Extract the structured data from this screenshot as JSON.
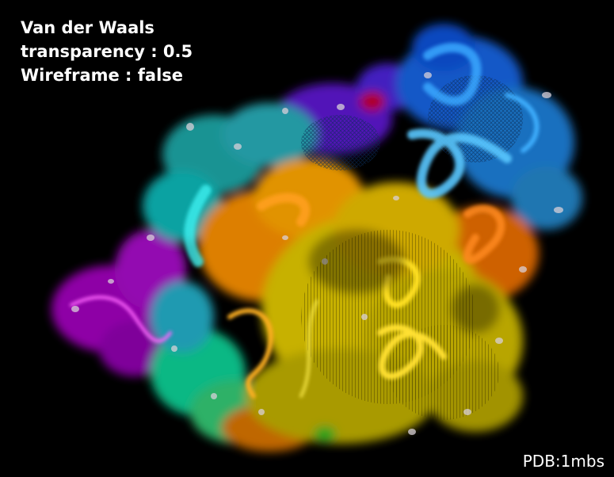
{
  "settings": {
    "representation": "Van der Waals",
    "transparency": "transparency : 0.5",
    "wireframe": "Wireframe : false"
  },
  "structure": {
    "pdb_id": "PDB:1mbs"
  },
  "render": {
    "background": "#000000",
    "palette": [
      "#9400d3",
      "#5a2ad8",
      "#1e90ff",
      "#00bcd4",
      "#00c89a",
      "#38d070",
      "#ffb000",
      "#ff8c00",
      "#e6d000",
      "#c8c000"
    ],
    "style": "translucent rainbow molecular surface over cartoon backbone"
  }
}
